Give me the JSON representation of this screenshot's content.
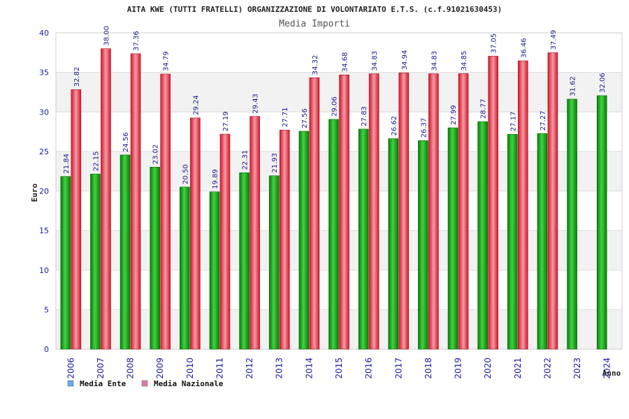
{
  "chart_data": {
    "type": "bar",
    "title": "AITA KWE (TUTTI FRATELLI) ORGANIZZAZIONE DI VOLONTARIATO E.T.S. (c.f.91021630453)",
    "subtitle": "Media Importi",
    "xlabel": "Anno",
    "ylabel": "Euro",
    "ylim": [
      0,
      40
    ],
    "yticks": [
      0,
      5,
      10,
      15,
      20,
      25,
      30,
      35,
      40
    ],
    "grid": true,
    "legend_position": "bottom-left",
    "categories": [
      "2006",
      "2007",
      "2008",
      "2009",
      "2010",
      "2011",
      "2012",
      "2013",
      "2014",
      "2015",
      "2016",
      "2017",
      "2018",
      "2019",
      "2020",
      "2021",
      "2022",
      "2023",
      "2024"
    ],
    "series": [
      {
        "name": "Media Ente",
        "color": "#22aa22",
        "legend_color": "#6aaaf0",
        "values": [
          21.84,
          22.15,
          24.56,
          23.02,
          20.5,
          19.89,
          22.31,
          21.93,
          27.56,
          29.06,
          27.83,
          26.62,
          26.37,
          27.99,
          28.77,
          27.17,
          27.27,
          31.62,
          32.06
        ],
        "labels": [
          "21.84",
          "22.15",
          "24.56",
          "23.02",
          "20.50",
          "19.89",
          "22.31",
          "21.93",
          "27.56",
          "29.06",
          "27.83",
          "26.62",
          "26.37",
          "27.99",
          "28.77",
          "27.17",
          "27.27",
          "31.62",
          "32.06"
        ]
      },
      {
        "name": "Media Nazionale",
        "color": "#e8283c",
        "legend_color": "#e07aa8",
        "values": [
          32.82,
          38.0,
          37.36,
          34.79,
          29.24,
          27.19,
          29.43,
          27.71,
          34.32,
          34.68,
          34.83,
          34.94,
          34.83,
          34.85,
          37.05,
          36.46,
          37.49,
          null,
          null
        ],
        "labels": [
          "32.82",
          "38.00",
          "37.36",
          "34.79",
          "29.24",
          "27.19",
          "29.43",
          "27.71",
          "34.32",
          "34.68",
          "34.83",
          "34.94",
          "34.83",
          "34.85",
          "37.05",
          "36.46",
          "37.49",
          null,
          null
        ]
      }
    ]
  }
}
